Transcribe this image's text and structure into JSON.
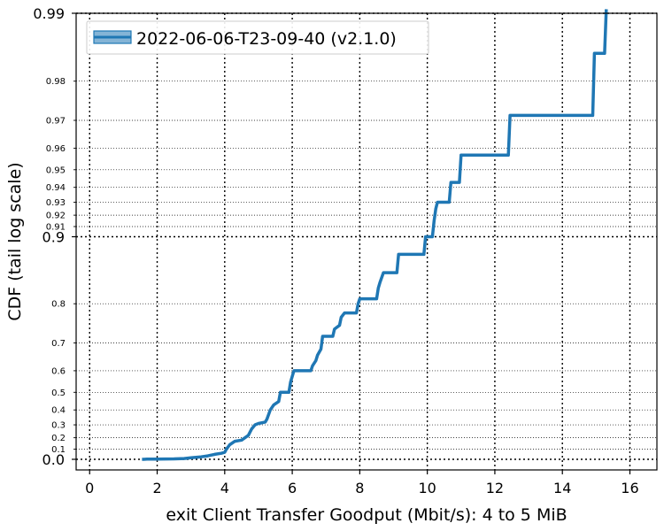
{
  "chart_data": {
    "type": "line",
    "xlabel": "exit Client Transfer Goodput (Mbit/s): 4 to 5 MiB",
    "ylabel": "CDF (tail log scale)",
    "xlim": [
      -0.4,
      16.8
    ],
    "x_ticks": [
      0,
      2,
      4,
      6,
      8,
      10,
      12,
      14,
      16
    ],
    "y_scale": "tail-log",
    "y_major_ticks": [
      {
        "value": 0.0,
        "label": "0.0"
      },
      {
        "value": 0.9,
        "label": "0.9"
      },
      {
        "value": 0.99,
        "label": "0.99"
      }
    ],
    "y_minor_ticks": [
      {
        "value": 0.1,
        "label": "0.1"
      },
      {
        "value": 0.2,
        "label": "0.2"
      },
      {
        "value": 0.3,
        "label": "0.3"
      },
      {
        "value": 0.4,
        "label": "0.4"
      },
      {
        "value": 0.5,
        "label": "0.5"
      },
      {
        "value": 0.6,
        "label": "0.6"
      },
      {
        "value": 0.7,
        "label": "0.7"
      },
      {
        "value": 0.8,
        "label": "0.8"
      },
      {
        "value": 0.91,
        "label": "0.91"
      },
      {
        "value": 0.92,
        "label": "0.92"
      },
      {
        "value": 0.93,
        "label": "0.93"
      },
      {
        "value": 0.94,
        "label": "0.94"
      },
      {
        "value": 0.95,
        "label": "0.95"
      },
      {
        "value": 0.96,
        "label": "0.96"
      },
      {
        "value": 0.97,
        "label": "0.97"
      },
      {
        "value": 0.98,
        "label": "0.98"
      }
    ],
    "grid": true,
    "legend_position": "top-left",
    "series": [
      {
        "name": "2022-06-06-T23-09-40 (v2.1.0)",
        "color": "#1f77b4",
        "points": [
          [
            1.55,
            0.0
          ],
          [
            1.6,
            0.0
          ],
          [
            1.7,
            0.003
          ],
          [
            2.0,
            0.003
          ],
          [
            2.5,
            0.005
          ],
          [
            2.8,
            0.008
          ],
          [
            3.0,
            0.015
          ],
          [
            3.3,
            0.025
          ],
          [
            3.5,
            0.035
          ],
          [
            3.7,
            0.05
          ],
          [
            3.9,
            0.06
          ],
          [
            4.0,
            0.07
          ],
          [
            4.05,
            0.1
          ],
          [
            4.15,
            0.14
          ],
          [
            4.3,
            0.17
          ],
          [
            4.5,
            0.18
          ],
          [
            4.7,
            0.22
          ],
          [
            4.8,
            0.27
          ],
          [
            4.9,
            0.3
          ],
          [
            5.0,
            0.31
          ],
          [
            5.2,
            0.32
          ],
          [
            5.25,
            0.34
          ],
          [
            5.35,
            0.4
          ],
          [
            5.45,
            0.43
          ],
          [
            5.6,
            0.45
          ],
          [
            5.65,
            0.5
          ],
          [
            5.9,
            0.5
          ],
          [
            5.95,
            0.55
          ],
          [
            6.05,
            0.6
          ],
          [
            6.55,
            0.6
          ],
          [
            6.6,
            0.62
          ],
          [
            6.7,
            0.64
          ],
          [
            6.75,
            0.66
          ],
          [
            6.85,
            0.68
          ],
          [
            6.9,
            0.72
          ],
          [
            7.2,
            0.72
          ],
          [
            7.25,
            0.74
          ],
          [
            7.4,
            0.75
          ],
          [
            7.45,
            0.77
          ],
          [
            7.55,
            0.78
          ],
          [
            7.9,
            0.78
          ],
          [
            7.95,
            0.8
          ],
          [
            8.0,
            0.81
          ],
          [
            8.5,
            0.81
          ],
          [
            8.55,
            0.83
          ],
          [
            8.6,
            0.84
          ],
          [
            8.7,
            0.855
          ],
          [
            9.1,
            0.855
          ],
          [
            9.15,
            0.88
          ],
          [
            9.9,
            0.88
          ],
          [
            9.95,
            0.9
          ],
          [
            10.15,
            0.9
          ],
          [
            10.2,
            0.915
          ],
          [
            10.25,
            0.925
          ],
          [
            10.3,
            0.93
          ],
          [
            10.65,
            0.93
          ],
          [
            10.7,
            0.943
          ],
          [
            10.95,
            0.943
          ],
          [
            11.0,
            0.957
          ],
          [
            12.4,
            0.957
          ],
          [
            12.45,
            0.9715
          ],
          [
            14.9,
            0.9715
          ],
          [
            14.95,
            0.985
          ],
          [
            15.25,
            0.985
          ],
          [
            15.3,
            0.9905
          ]
        ]
      }
    ]
  }
}
